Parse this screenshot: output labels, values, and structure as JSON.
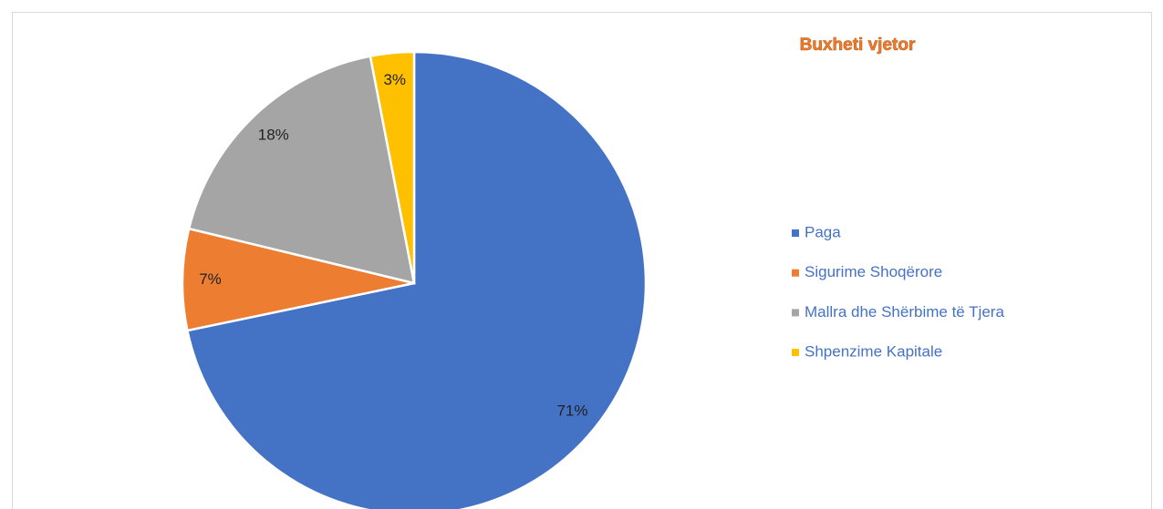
{
  "chart_data": {
    "type": "pie",
    "title": "Buxheti vjetor",
    "categories": [
      "Paga",
      "Sigurime Shoqërore",
      "Mallra dhe Shërbime të Tjera",
      "Shpenzime Kapitale"
    ],
    "values": [
      71,
      7,
      18,
      3
    ],
    "value_labels": [
      "71%",
      "7%",
      "18%",
      "3%"
    ],
    "colors": [
      "#4472c4",
      "#ed7d31",
      "#a5a5a5",
      "#ffc000"
    ],
    "legend": "right"
  }
}
